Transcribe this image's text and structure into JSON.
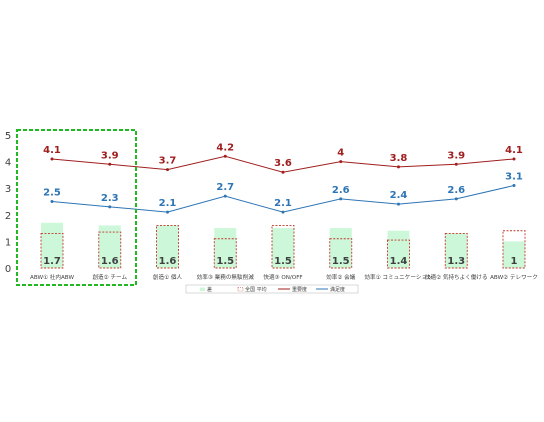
{
  "chart_data": {
    "type": "bar",
    "categories": [
      "ABW① 社内ABW",
      "創造② チーム",
      "創造① 個人",
      "効率③ 業務の無駄削減",
      "快適③ ON/OFF",
      "効率② 会議",
      "効率① コミュニケーション",
      "快適② 気持ちよく働ける",
      "ABW② テレワーク"
    ],
    "series": [
      {
        "name": "差",
        "kind": "bar",
        "values": [
          1.7,
          1.6,
          1.6,
          1.5,
          1.5,
          1.5,
          1.4,
          1.3,
          1.0
        ]
      },
      {
        "name": "全国 平均",
        "kind": "bar-outline",
        "values": [
          1.3,
          1.35,
          1.6,
          1.1,
          1.6,
          1.1,
          1.05,
          1.3,
          1.4
        ]
      },
      {
        "name": "重要度",
        "kind": "line",
        "values": [
          4.1,
          3.9,
          3.7,
          4.2,
          3.6,
          4.0,
          3.8,
          3.9,
          4.1
        ]
      },
      {
        "name": "満足度",
        "kind": "line",
        "values": [
          2.5,
          2.3,
          2.1,
          2.7,
          2.1,
          2.6,
          2.4,
          2.6,
          3.1
        ]
      }
    ],
    "ylim": [
      0,
      5
    ],
    "yticks": [
      "0",
      "1",
      "2",
      "3",
      "4",
      "5"
    ],
    "highlight": {
      "categories": [
        0,
        1
      ],
      "color": "#22b822"
    },
    "colors": {
      "gap_fill": "#ccf7d8",
      "avg_outline": "#c0392b",
      "importance": "#a01e1e",
      "satisfaction": "#2e75b6"
    },
    "legend": {
      "placement": "bottom"
    },
    "grid": false
  }
}
